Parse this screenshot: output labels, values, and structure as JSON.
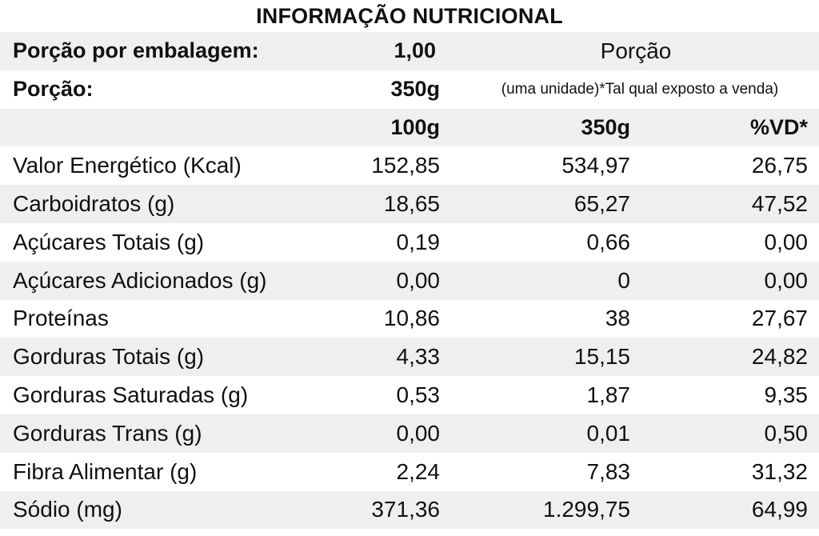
{
  "title": "INFORMAÇÃO NUTRICIONAL",
  "header": {
    "servings_label": "Porção por embalagem:",
    "servings_value": "1,00",
    "portion_word": "Porção",
    "portion_label": "Porção:",
    "portion_value": "350g",
    "portion_note": "(uma unidade)*Tal qual exposto a venda)",
    "col_100g": "100g",
    "col_350g": "350g",
    "col_vd": "%VD*"
  },
  "rows": [
    {
      "name": "Valor Energético (Kcal)",
      "v100": "152,85",
      "v350": "534,97",
      "vd": "26,75"
    },
    {
      "name": "Carboidratos (g)",
      "v100": "18,65",
      "v350": "65,27",
      "vd": "47,52"
    },
    {
      "name": "Açúcares Totais (g)",
      "v100": "0,19",
      "v350": "0,66",
      "vd": "0,00"
    },
    {
      "name": "Açúcares Adicionados (g)",
      "v100": "0,00",
      "v350": "0",
      "vd": "0,00"
    },
    {
      "name": "Proteínas",
      "v100": "10,86",
      "v350": "38",
      "vd": "27,67"
    },
    {
      "name": "Gorduras Totais (g)",
      "v100": "4,33",
      "v350": "15,15",
      "vd": "24,82"
    },
    {
      "name": "Gorduras Saturadas (g)",
      "v100": "0,53",
      "v350": "1,87",
      "vd": "9,35"
    },
    {
      "name": "Gorduras Trans (g)",
      "v100": "0,00",
      "v350": "0,01",
      "vd": "0,50"
    },
    {
      "name": "Fibra Alimentar (g)",
      "v100": "2,24",
      "v350": "7,83",
      "vd": "31,32"
    },
    {
      "name": "Sódio (mg)",
      "v100": "371,36",
      "v350": "1.299,75",
      "vd": "64,99"
    }
  ],
  "colors": {
    "shade": "#efefef",
    "text": "#111111"
  }
}
